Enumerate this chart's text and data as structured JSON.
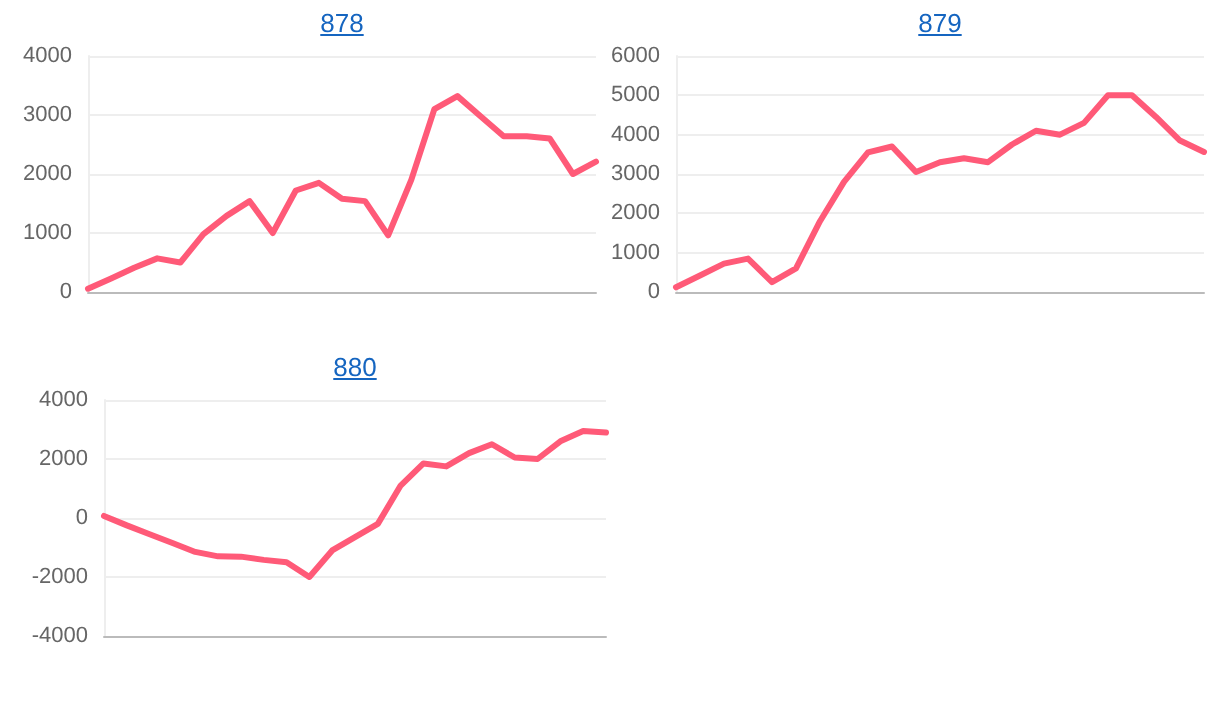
{
  "chart_data": [
    {
      "type": "line",
      "title": "878",
      "categories": [
        null,
        null,
        null,
        null,
        null,
        null,
        null,
        null,
        null,
        null,
        null,
        null,
        null,
        null,
        null,
        null,
        null,
        null,
        null,
        null,
        null,
        null,
        null
      ],
      "series": [
        {
          "color": "#ff5a78",
          "values": [
            55,
            230,
            410,
            570,
            500,
            980,
            1290,
            1540,
            1000,
            1720,
            1850,
            1580,
            1540,
            960,
            1900,
            3100,
            3320,
            2980,
            2640,
            2640,
            2600,
            2000,
            2210
          ]
        }
      ],
      "ylim": [
        0,
        4000
      ],
      "yticks": [
        0,
        1000,
        2000,
        3000,
        4000
      ],
      "grid": "y",
      "tick_labels": "y",
      "marker": "none",
      "line_style": "solid"
    },
    {
      "type": "line",
      "title": "879",
      "categories": [
        null,
        null,
        null,
        null,
        null,
        null,
        null,
        null,
        null,
        null,
        null,
        null,
        null,
        null,
        null,
        null,
        null,
        null,
        null,
        null,
        null,
        null,
        null
      ],
      "series": [
        {
          "color": "#ff5a78",
          "values": [
            120,
            420,
            720,
            850,
            250,
            600,
            1800,
            2800,
            3550,
            3700,
            3050,
            3300,
            3400,
            3300,
            3750,
            4100,
            4000,
            4300,
            5000,
            5000,
            4450,
            3850,
            3560
          ]
        }
      ],
      "ylim": [
        0,
        6000
      ],
      "yticks": [
        0,
        1000,
        2000,
        3000,
        4000,
        5000,
        6000
      ],
      "grid": "y",
      "tick_labels": "y",
      "marker": "none",
      "line_style": "solid"
    },
    {
      "type": "line",
      "title": "880",
      "categories": [
        null,
        null,
        null,
        null,
        null,
        null,
        null,
        null,
        null,
        null,
        null,
        null,
        null,
        null,
        null,
        null,
        null,
        null,
        null,
        null,
        null,
        null,
        null
      ],
      "series": [
        {
          "color": "#ff5a78",
          "values": [
            70,
            -250,
            -550,
            -850,
            -1150,
            -1300,
            -1310,
            -1420,
            -1500,
            -2000,
            -1100,
            -650,
            -200,
            1100,
            1850,
            1750,
            2200,
            2500,
            2050,
            2000,
            2600,
            2950,
            2900
          ]
        }
      ],
      "ylim": [
        -4000,
        4000
      ],
      "yticks": [
        -4000,
        -2000,
        0,
        2000,
        4000
      ],
      "grid": "y",
      "tick_labels": "y",
      "marker": "none",
      "line_style": "solid"
    }
  ]
}
